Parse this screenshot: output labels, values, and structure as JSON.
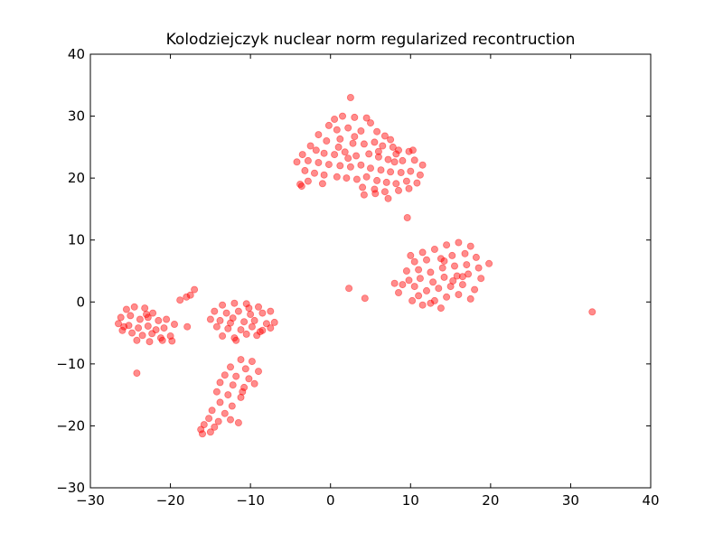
{
  "chart_data": {
    "type": "scatter",
    "title": "Kolodziejczyk nuclear norm regularized recontruction",
    "xlabel": "",
    "ylabel": "",
    "xlim": [
      -30,
      40
    ],
    "ylim": [
      -30,
      40
    ],
    "xticks": [
      -30,
      -20,
      -10,
      0,
      10,
      20,
      30,
      40
    ],
    "yticks": [
      -30,
      -20,
      -10,
      0,
      10,
      20,
      30,
      40
    ],
    "xtick_labels": [
      "−30",
      "−20",
      "−10",
      "0",
      "10",
      "20",
      "30",
      "40"
    ],
    "ytick_labels": [
      "−30",
      "−20",
      "−10",
      "0",
      "10",
      "20",
      "30",
      "40"
    ],
    "grid": false,
    "marker_color": "#ff0000",
    "marker_opacity": 0.45,
    "points": [
      [
        2.5,
        33
      ],
      [
        0.5,
        29.5
      ],
      [
        1.5,
        30
      ],
      [
        3,
        29.8
      ],
      [
        4.5,
        29.7
      ],
      [
        -0.2,
        28.5
      ],
      [
        0.8,
        27.8
      ],
      [
        2.2,
        28.1
      ],
      [
        3.8,
        27.6
      ],
      [
        5,
        28.9
      ],
      [
        5.8,
        27.5
      ],
      [
        6.8,
        26.8
      ],
      [
        7.5,
        26.2
      ],
      [
        -1.5,
        27
      ],
      [
        -0.5,
        26
      ],
      [
        1.2,
        26.3
      ],
      [
        2.8,
        25.6
      ],
      [
        4.2,
        25.5
      ],
      [
        5.5,
        25.8
      ],
      [
        6.5,
        25.2
      ],
      [
        7.8,
        25
      ],
      [
        8.5,
        24.5
      ],
      [
        9.8,
        24.3
      ],
      [
        10.3,
        24.5
      ],
      [
        -2.5,
        25.2
      ],
      [
        -1.8,
        24.5
      ],
      [
        -0.8,
        24
      ],
      [
        0.5,
        23.8
      ],
      [
        1.8,
        24.2
      ],
      [
        3.2,
        23.6
      ],
      [
        4.8,
        23.9
      ],
      [
        6,
        23.4
      ],
      [
        7.2,
        23
      ],
      [
        8,
        22.6
      ],
      [
        9,
        22.8
      ],
      [
        10.5,
        22.9
      ],
      [
        11.5,
        22.1
      ],
      [
        -3.5,
        23.8
      ],
      [
        -2.8,
        22.8
      ],
      [
        -1.5,
        22.5
      ],
      [
        -0.2,
        22.2
      ],
      [
        1.2,
        22
      ],
      [
        2.5,
        21.8
      ],
      [
        3.8,
        22.1
      ],
      [
        5,
        21.6
      ],
      [
        6.3,
        21.3
      ],
      [
        7.5,
        21
      ],
      [
        8.8,
        20.9
      ],
      [
        10,
        21.1
      ],
      [
        11.2,
        20.5
      ],
      [
        -4.2,
        22.6
      ],
      [
        -3.2,
        21.2
      ],
      [
        -2,
        20.8
      ],
      [
        -0.8,
        20.5
      ],
      [
        0.8,
        20.2
      ],
      [
        2,
        20
      ],
      [
        3.3,
        19.8
      ],
      [
        4.5,
        20.2
      ],
      [
        5.8,
        19.6
      ],
      [
        7,
        19.3
      ],
      [
        8.2,
        19.1
      ],
      [
        9.5,
        19.5
      ],
      [
        10.8,
        19.2
      ],
      [
        -3.8,
        19
      ],
      [
        -2.8,
        19.5
      ],
      [
        -1,
        19.1
      ],
      [
        4,
        18.5
      ],
      [
        5.5,
        18.2
      ],
      [
        6.8,
        17.8
      ],
      [
        8.5,
        18
      ],
      [
        9.8,
        18.3
      ],
      [
        4.2,
        17.3
      ],
      [
        5.6,
        17.5
      ],
      [
        7.2,
        16.7
      ],
      [
        -3.6,
        18.7
      ],
      [
        2.2,
        23.2
      ],
      [
        6,
        24.3
      ],
      [
        3,
        26.7
      ],
      [
        8.2,
        23.9
      ],
      [
        1,
        25
      ],
      [
        9.6,
        13.6
      ],
      [
        10,
        7.5
      ],
      [
        11.5,
        8
      ],
      [
        13,
        8.5
      ],
      [
        14.5,
        9.2
      ],
      [
        16,
        9.6
      ],
      [
        17.5,
        9
      ],
      [
        10.5,
        6.5
      ],
      [
        12,
        6.8
      ],
      [
        13.8,
        7
      ],
      [
        15.2,
        7.5
      ],
      [
        16.8,
        7.8
      ],
      [
        18.2,
        7.2
      ],
      [
        9.5,
        5
      ],
      [
        11,
        5.2
      ],
      [
        12.5,
        4.8
      ],
      [
        14,
        5.5
      ],
      [
        15.5,
        5.8
      ],
      [
        17,
        6
      ],
      [
        18.5,
        5.5
      ],
      [
        19.8,
        6.2
      ],
      [
        9.8,
        3.5
      ],
      [
        11.2,
        3.8
      ],
      [
        12.8,
        3.2
      ],
      [
        14.2,
        4
      ],
      [
        15.8,
        4.2
      ],
      [
        17.2,
        4.5
      ],
      [
        18.8,
        3.8
      ],
      [
        9,
        2.8
      ],
      [
        10.5,
        2.5
      ],
      [
        12,
        1.8
      ],
      [
        13.5,
        2.2
      ],
      [
        15,
        2.5
      ],
      [
        16.5,
        2.8
      ],
      [
        18,
        2
      ],
      [
        8.5,
        1.5
      ],
      [
        11,
        1
      ],
      [
        13,
        0.2
      ],
      [
        14.5,
        0.8
      ],
      [
        16,
        1.2
      ],
      [
        17.5,
        0.5
      ],
      [
        11.5,
        -0.5
      ],
      [
        13.8,
        -1
      ],
      [
        12.5,
        -0.2
      ],
      [
        8,
        3
      ],
      [
        10.2,
        0.2
      ],
      [
        15.3,
        3.4
      ],
      [
        14.2,
        6.6
      ],
      [
        16.5,
        4.1
      ],
      [
        2.3,
        2.2
      ],
      [
        4.3,
        0.6
      ],
      [
        32.7,
        -1.6
      ],
      [
        -17,
        2
      ],
      [
        -17.5,
        1.1
      ],
      [
        -18,
        0.8
      ],
      [
        -18.8,
        0.3
      ],
      [
        -25.5,
        -1.2
      ],
      [
        -24.5,
        -0.8
      ],
      [
        -23.2,
        -1
      ],
      [
        -22.2,
        -1.8
      ],
      [
        -26.2,
        -2.5
      ],
      [
        -25,
        -2.2
      ],
      [
        -23.8,
        -2.8
      ],
      [
        -22.8,
        -2.5
      ],
      [
        -21.5,
        -3
      ],
      [
        -20.5,
        -2.8
      ],
      [
        -26.5,
        -3.5
      ],
      [
        -25.2,
        -3.8
      ],
      [
        -24,
        -4.2
      ],
      [
        -22.8,
        -3.9
      ],
      [
        -21.8,
        -4.5
      ],
      [
        -20.8,
        -4.2
      ],
      [
        -19.5,
        -3.6
      ],
      [
        -26,
        -4.6
      ],
      [
        -24.8,
        -5
      ],
      [
        -23.5,
        -5.4
      ],
      [
        -22.3,
        -5.1
      ],
      [
        -21.2,
        -5.8
      ],
      [
        -20,
        -5.5
      ],
      [
        -24.2,
        -6.2
      ],
      [
        -22.6,
        -6.4
      ],
      [
        -21,
        -6.2
      ],
      [
        -19.8,
        -6.3
      ],
      [
        -17.9,
        -4
      ],
      [
        -24.2,
        -11.5
      ],
      [
        -25.8,
        -4
      ],
      [
        -23,
        -2
      ],
      [
        -13.5,
        -0.5
      ],
      [
        -12,
        -0.2
      ],
      [
        -10.5,
        -0.3
      ],
      [
        -9,
        -0.8
      ],
      [
        -14.5,
        -1.5
      ],
      [
        -13,
        -1.8
      ],
      [
        -11.5,
        -1.5
      ],
      [
        -10,
        -2
      ],
      [
        -8.5,
        -1.8
      ],
      [
        -7.5,
        -1.5
      ],
      [
        -15,
        -2.8
      ],
      [
        -13.8,
        -3
      ],
      [
        -12.2,
        -2.6
      ],
      [
        -10.8,
        -3.2
      ],
      [
        -9.5,
        -3
      ],
      [
        -8,
        -3.5
      ],
      [
        -7,
        -3.3
      ],
      [
        -14.2,
        -4
      ],
      [
        -12.8,
        -4.3
      ],
      [
        -11.2,
        -4.5
      ],
      [
        -9.8,
        -4
      ],
      [
        -8.5,
        -4.6
      ],
      [
        -7.5,
        -4.2
      ],
      [
        -13.5,
        -5.5
      ],
      [
        -12,
        -5.8
      ],
      [
        -10.5,
        -5.2
      ],
      [
        -9.2,
        -5.4
      ],
      [
        -8.8,
        -4.8
      ],
      [
        -11.8,
        -6.2
      ],
      [
        -12.5,
        -3.4
      ],
      [
        -10.2,
        -1
      ],
      [
        -11.2,
        -9.3
      ],
      [
        -9.8,
        -9.6
      ],
      [
        -12.5,
        -10.5
      ],
      [
        -10.6,
        -10.8
      ],
      [
        -9,
        -11.2
      ],
      [
        -13.2,
        -11.8
      ],
      [
        -11.8,
        -12
      ],
      [
        -10.2,
        -12.4
      ],
      [
        -13.8,
        -13
      ],
      [
        -12.2,
        -13.4
      ],
      [
        -10.8,
        -13.8
      ],
      [
        -9.5,
        -13.2
      ],
      [
        -14.2,
        -14.5
      ],
      [
        -12.8,
        -15
      ],
      [
        -11.2,
        -15.4
      ],
      [
        -13.8,
        -16.2
      ],
      [
        -12.3,
        -16.8
      ],
      [
        -14.8,
        -17.5
      ],
      [
        -13.2,
        -18
      ],
      [
        -15.2,
        -18.8
      ],
      [
        -14,
        -19.3
      ],
      [
        -12.5,
        -19
      ],
      [
        -15.8,
        -19.8
      ],
      [
        -14.5,
        -20.2
      ],
      [
        -16.2,
        -20.6
      ],
      [
        -15,
        -21
      ],
      [
        -16,
        -21.3
      ],
      [
        -11.5,
        -19.5
      ],
      [
        -11,
        -14.5
      ]
    ]
  }
}
